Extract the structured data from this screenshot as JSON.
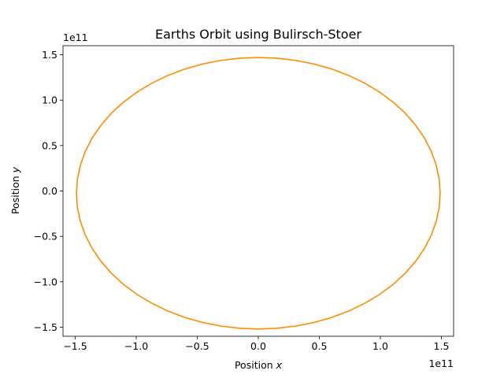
{
  "chart_data": {
    "type": "line",
    "title": "Earths Orbit using Bulirsch-Stoer",
    "xlabel_prefix": "Position ",
    "xlabel_var": "x",
    "ylabel_prefix": "Position ",
    "ylabel_var": "y",
    "x_offset_label": "1e11",
    "y_offset_label": "1e11",
    "scale": 100000000000.0,
    "xlim": [
      -1.6,
      1.6
    ],
    "ylim": [
      -1.6,
      1.6
    ],
    "xticks": [
      -1.5,
      -1.0,
      -0.5,
      0.0,
      0.5,
      1.0,
      1.5
    ],
    "xtick_labels": [
      "−1.5",
      "−1.0",
      "−0.5",
      "0.0",
      "0.5",
      "1.0",
      "1.5"
    ],
    "yticks": [
      -1.5,
      -1.0,
      -0.5,
      0.0,
      0.5,
      1.0,
      1.5
    ],
    "ytick_labels": [
      "−1.5",
      "−1.0",
      "−0.5",
      "0.0",
      "0.5",
      "1.0",
      "1.5"
    ],
    "grid": false,
    "series": [
      {
        "color": "#ff8c00",
        "orbit": {
          "x_max": 1.49,
          "x_min": -1.49,
          "y_max": 1.47,
          "y_min": -1.52,
          "center_y": -0.025,
          "points": 60
        }
      }
    ]
  }
}
